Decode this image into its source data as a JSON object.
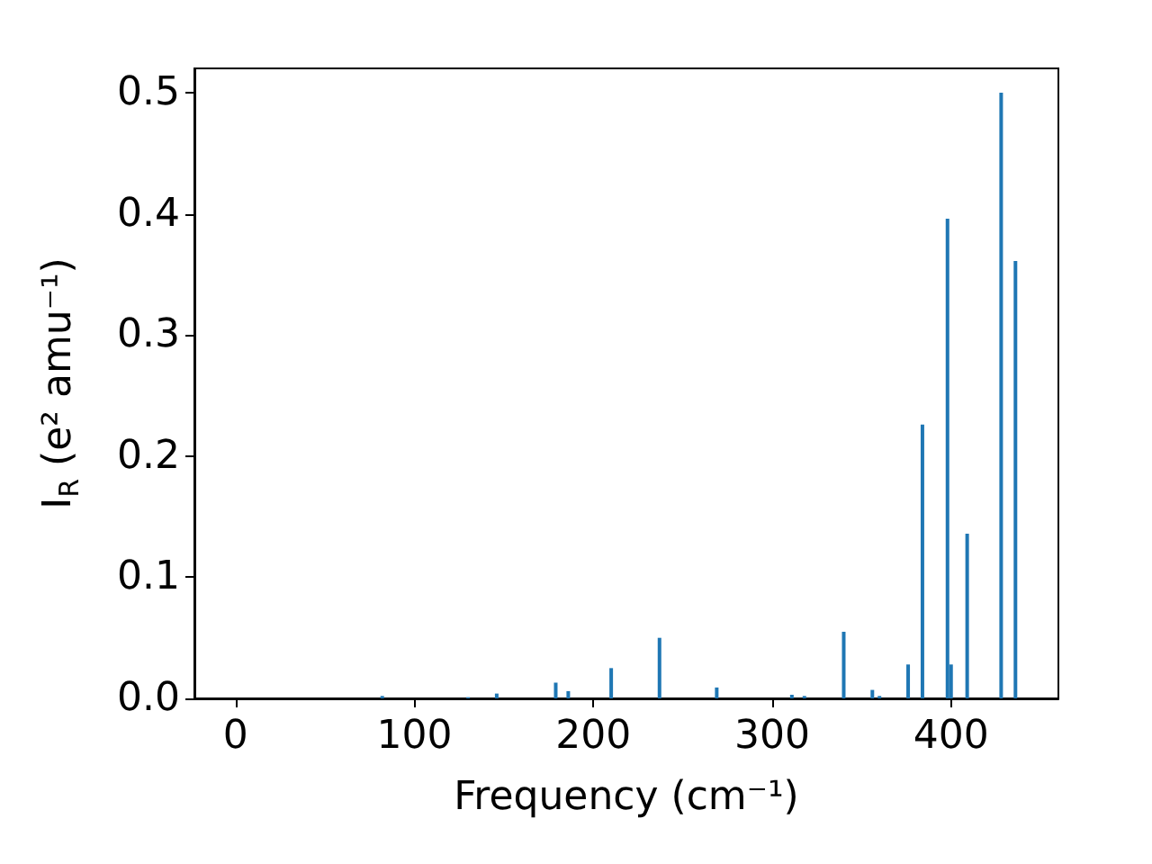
{
  "chart_data": {
    "type": "bar",
    "xlabel": "Frequency (cm⁻¹)",
    "ylabel": "I$_{R}$ (e² amu⁻¹)",
    "x": [
      82,
      130,
      146,
      179,
      186,
      210,
      237,
      269,
      311,
      318,
      340,
      356,
      360,
      376,
      384,
      398,
      400,
      409,
      428,
      436
    ],
    "values": [
      0.002,
      0.001,
      0.004,
      0.013,
      0.006,
      0.025,
      0.05,
      0.009,
      0.003,
      0.002,
      0.055,
      0.007,
      0.002,
      0.028,
      0.226,
      0.396,
      0.028,
      0.136,
      0.5,
      0.361
    ],
    "color": "#1f77b4",
    "xlim": [
      -23,
      460
    ],
    "ylim": [
      0,
      0.52
    ],
    "xticks": [
      0,
      100,
      200,
      300,
      400
    ],
    "yticks": [
      {
        "value": 0,
        "label": "0.0"
      },
      0.1,
      0.2,
      0.3,
      0.4,
      0.5
    ],
    "grid": false
  }
}
